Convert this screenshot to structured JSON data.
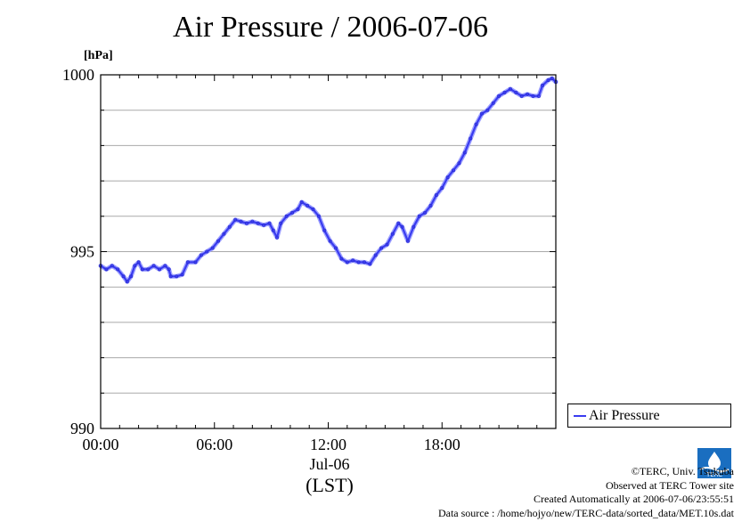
{
  "chart_data": {
    "type": "line",
    "title": "Air Pressure / 2006-07-06",
    "ylabel": "[hPa]",
    "xlabel": "(LST)",
    "x_sublabel": "Jul-06",
    "ylim": [
      990,
      1000
    ],
    "yticks": [
      990,
      995,
      1000
    ],
    "y_minor_step": 1,
    "xlim_hours": [
      0,
      24
    ],
    "xticks": [
      {
        "hour": 0,
        "label": "00:00"
      },
      {
        "hour": 6,
        "label": "06:00"
      },
      {
        "hour": 12,
        "label": "12:00"
      },
      {
        "hour": 18,
        "label": "18:00"
      }
    ],
    "grid": "horizontal",
    "legend_position": "bottom-right-outside",
    "series": [
      {
        "name": "Air Pressure",
        "color": "#3a3cf0",
        "points": [
          [
            0.0,
            994.6
          ],
          [
            0.3,
            994.5
          ],
          [
            0.6,
            994.6
          ],
          [
            0.9,
            994.5
          ],
          [
            1.2,
            994.3
          ],
          [
            1.4,
            994.15
          ],
          [
            1.6,
            994.3
          ],
          [
            1.8,
            994.6
          ],
          [
            2.0,
            994.7
          ],
          [
            2.2,
            994.5
          ],
          [
            2.5,
            994.5
          ],
          [
            2.8,
            994.6
          ],
          [
            3.1,
            994.5
          ],
          [
            3.4,
            994.6
          ],
          [
            3.6,
            994.5
          ],
          [
            3.7,
            994.3
          ],
          [
            4.0,
            994.3
          ],
          [
            4.3,
            994.35
          ],
          [
            4.6,
            994.7
          ],
          [
            5.0,
            994.7
          ],
          [
            5.3,
            994.9
          ],
          [
            5.6,
            995.0
          ],
          [
            5.9,
            995.1
          ],
          [
            6.2,
            995.3
          ],
          [
            6.5,
            995.5
          ],
          [
            6.8,
            995.7
          ],
          [
            7.1,
            995.9
          ],
          [
            7.4,
            995.85
          ],
          [
            7.7,
            995.8
          ],
          [
            8.0,
            995.85
          ],
          [
            8.3,
            995.8
          ],
          [
            8.6,
            995.75
          ],
          [
            8.9,
            995.8
          ],
          [
            9.1,
            995.6
          ],
          [
            9.3,
            995.4
          ],
          [
            9.5,
            995.8
          ],
          [
            9.8,
            996.0
          ],
          [
            10.1,
            996.1
          ],
          [
            10.4,
            996.2
          ],
          [
            10.6,
            996.4
          ],
          [
            10.9,
            996.3
          ],
          [
            11.2,
            996.2
          ],
          [
            11.5,
            996.0
          ],
          [
            11.8,
            995.6
          ],
          [
            12.1,
            995.3
          ],
          [
            12.4,
            995.1
          ],
          [
            12.7,
            994.8
          ],
          [
            13.0,
            994.7
          ],
          [
            13.3,
            994.75
          ],
          [
            13.6,
            994.7
          ],
          [
            13.9,
            994.7
          ],
          [
            14.2,
            994.65
          ],
          [
            14.5,
            994.9
          ],
          [
            14.8,
            995.1
          ],
          [
            15.1,
            995.2
          ],
          [
            15.4,
            995.5
          ],
          [
            15.7,
            995.8
          ],
          [
            15.9,
            995.7
          ],
          [
            16.2,
            995.3
          ],
          [
            16.5,
            995.7
          ],
          [
            16.8,
            996.0
          ],
          [
            17.1,
            996.1
          ],
          [
            17.4,
            996.3
          ],
          [
            17.7,
            996.6
          ],
          [
            18.0,
            996.8
          ],
          [
            18.3,
            997.1
          ],
          [
            18.6,
            997.3
          ],
          [
            18.9,
            997.5
          ],
          [
            19.2,
            997.8
          ],
          [
            19.5,
            998.2
          ],
          [
            19.8,
            998.6
          ],
          [
            20.1,
            998.9
          ],
          [
            20.4,
            999.0
          ],
          [
            20.7,
            999.2
          ],
          [
            21.0,
            999.4
          ],
          [
            21.3,
            999.5
          ],
          [
            21.6,
            999.6
          ],
          [
            21.9,
            999.5
          ],
          [
            22.2,
            999.4
          ],
          [
            22.5,
            999.45
          ],
          [
            22.8,
            999.4
          ],
          [
            23.1,
            999.4
          ],
          [
            23.3,
            999.7
          ],
          [
            23.6,
            999.85
          ],
          [
            23.8,
            999.9
          ],
          [
            24.0,
            999.8
          ]
        ]
      }
    ]
  },
  "legend": {
    "label": "Air Pressure"
  },
  "credits": {
    "line1": "©TERC, Univ. Tsukuba",
    "line2": "Observed at TERC Tower site",
    "line3": "Created Automatically at 2006-07-06/23:55:51",
    "line4": "Data source : /home/hojyo/new/TERC-data/sorted_data/MET.10s.dat"
  },
  "logo": {
    "text": "TERC",
    "color": "#1a6ec0"
  }
}
